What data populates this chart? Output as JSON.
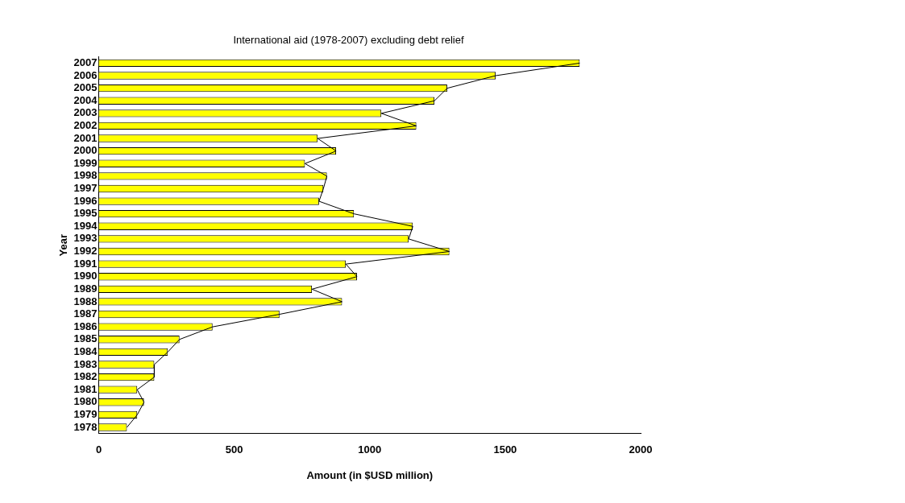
{
  "chart_data": {
    "type": "bar",
    "orientation": "horizontal",
    "title": "International aid (1978-2007) excluding debt relief",
    "xlabel": "Amount (in $USD million)",
    "ylabel": "Year",
    "categories": [
      "2007",
      "2006",
      "2005",
      "2004",
      "2003",
      "2002",
      "2001",
      "2000",
      "1999",
      "1998",
      "1997",
      "1996",
      "1995",
      "1994",
      "1993",
      "1992",
      "1991",
      "1990",
      "1989",
      "1988",
      "1987",
      "1986",
      "1985",
      "1984",
      "1983",
      "1982",
      "1981",
      "1980",
      "1979",
      "1978"
    ],
    "series": [
      {
        "color": "#ffff00",
        "values": [
          1775,
          1465,
          1286,
          1239,
          1043,
          1172,
          808,
          876,
          761,
          842,
          829,
          813,
          942,
          1159,
          1144,
          1294,
          912,
          953,
          787,
          898,
          667,
          420,
          298,
          255,
          205,
          205,
          142,
          167,
          142,
          104
        ]
      },
      {
        "type": "line",
        "color": "#000000",
        "marker": "none",
        "values": [
          1775,
          1465,
          1286,
          1239,
          1043,
          1172,
          808,
          876,
          761,
          842,
          829,
          813,
          942,
          1159,
          1144,
          1294,
          912,
          953,
          787,
          898,
          667,
          420,
          298,
          255,
          205,
          205,
          142,
          167,
          142,
          104
        ]
      }
    ],
    "xlim": [
      0,
      2000
    ],
    "xticks": [
      0,
      500,
      1000,
      1500,
      2000
    ],
    "grid": false,
    "legend": false
  }
}
